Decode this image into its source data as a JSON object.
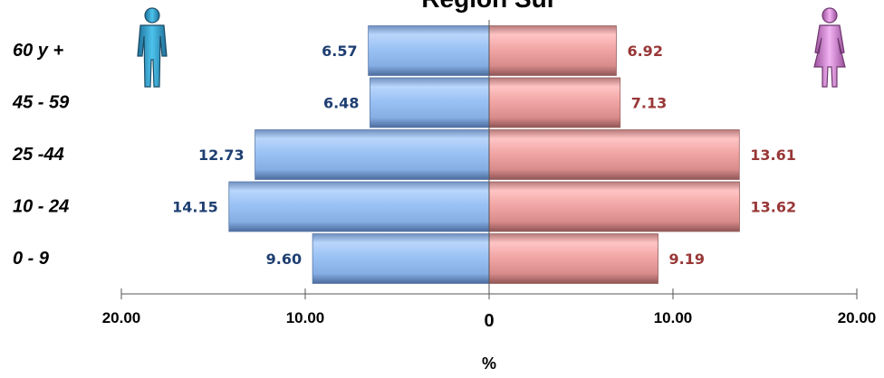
{
  "chart_data": {
    "type": "bar",
    "orientation": "horizontal-population-pyramid",
    "title": "Region Sur",
    "xlabel": "%",
    "categories": [
      "60 y +",
      "45 - 59",
      "25 -44",
      "10 - 24",
      "0 - 9"
    ],
    "series": [
      {
        "side": "left",
        "values": [
          6.57,
          6.48,
          12.73,
          14.15,
          9.6
        ],
        "labels": [
          "6.57",
          "6.48",
          "12.73",
          "14.15",
          "9.60"
        ],
        "color": "#9cc3f5",
        "label_color": "#1f3f72",
        "icon": "male-icon",
        "icon_color": "#2aa3cf"
      },
      {
        "side": "right",
        "values": [
          6.92,
          7.13,
          13.61,
          13.62,
          9.19
        ],
        "labels": [
          "6.92",
          "7.13",
          "13.61",
          "13.62",
          "9.19"
        ],
        "color": "#f3a7a7",
        "label_color": "#993737",
        "icon": "female-icon",
        "icon_color": "#d98ad9"
      }
    ],
    "xlim": [
      -20,
      20
    ],
    "ticks": [
      {
        "value": -20,
        "label": "20.00"
      },
      {
        "value": -10,
        "label": "10.00"
      },
      {
        "value": 0,
        "label": "0"
      },
      {
        "value": 10,
        "label": "10.00"
      },
      {
        "value": 20,
        "label": "20.00"
      }
    ],
    "grid": false,
    "legend": "none"
  }
}
